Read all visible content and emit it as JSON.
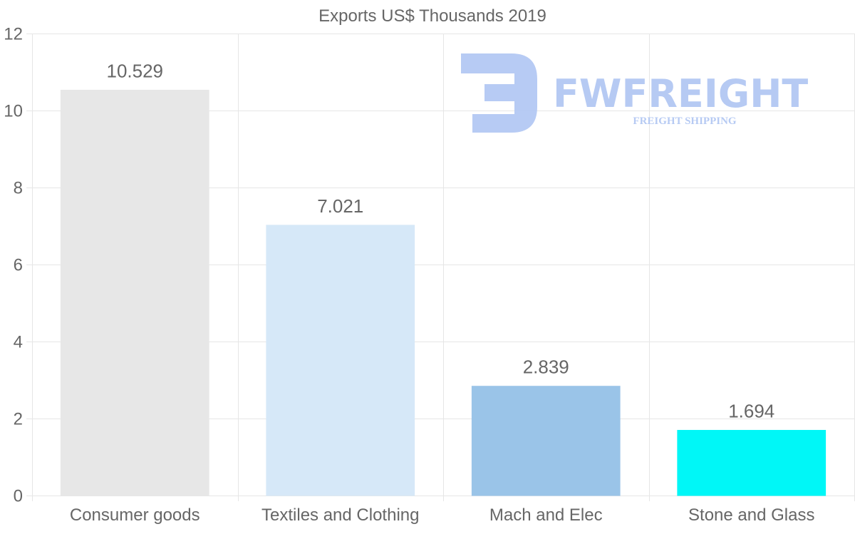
{
  "chart_data": {
    "type": "bar",
    "title": "Exports US$ Thousands 2019",
    "categories": [
      "Consumer goods",
      "Textiles and Clothing",
      "Mach and Elec",
      "Stone and Glass"
    ],
    "values": [
      10.529,
      7.021,
      2.839,
      1.694
    ],
    "value_labels": [
      "10.529",
      "7.021",
      "2.839",
      "1.694"
    ],
    "colors": [
      "#e7e7e7",
      "#d6e8f8",
      "#9ac4e8",
      "#00f7f7"
    ],
    "ylim": [
      0,
      12
    ],
    "yticks": [
      0,
      2,
      4,
      6,
      8,
      10,
      12
    ],
    "xlabel": "",
    "ylabel": "",
    "grid": true
  },
  "watermark": {
    "brand": "FWFREIGHT",
    "tagline": "FREIGHT SHIPPING",
    "color": "#b3c8f3"
  }
}
